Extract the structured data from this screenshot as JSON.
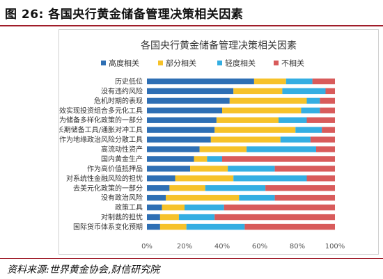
{
  "header": {
    "title": "图 26:  各国央行黄金储备管理决策相关因素"
  },
  "source": "资料来源:世界黄金协会,财信研究院",
  "chart_data": {
    "type": "bar",
    "orientation": "horizontal",
    "stacked": "percent",
    "title": "各国央行黄金储备管理决策相关因素",
    "legend_position": "top",
    "categories": [
      "历史低位",
      "没有违约风险",
      "危机时期的表现",
      "有效实现投资组合多元化工具",
      "作为储备多样化政策的一部分",
      "长期储备工具/通胀对冲工具",
      "作为地缘政治风险分散工具",
      "高流动性资产",
      "国内黄金生产",
      "作为高价值抵押品",
      "对系统性金融风险的担忧",
      "去美元化政策的一部分",
      "没有政治风险",
      "政策工具",
      "对制裁的担忧",
      "国际货币体系变化预期"
    ],
    "series": [
      {
        "name": "高度相关",
        "color": "#2e6fb4",
        "values": [
          57,
          46,
          44,
          40,
          37,
          36,
          34,
          28,
          25,
          23,
          15,
          12,
          10,
          8,
          7,
          7
        ]
      },
      {
        "name": "部分相关",
        "color": "#f6c22a",
        "values": [
          17,
          26,
          41,
          42,
          33,
          43,
          37,
          25,
          7,
          20,
          31,
          19,
          39,
          12,
          10,
          14
        ]
      },
      {
        "name": "轻度相关",
        "color": "#34aee2",
        "values": [
          14,
          23,
          7,
          10,
          15,
          14,
          16,
          37,
          8,
          25,
          39,
          32,
          19,
          21,
          19,
          31
        ]
      },
      {
        "name": "不相关",
        "color": "#d85b5b",
        "values": [
          12,
          5,
          8,
          8,
          15,
          7,
          13,
          10,
          60,
          32,
          15,
          37,
          32,
          59,
          64,
          48
        ]
      }
    ],
    "xlim": [
      0,
      100
    ],
    "x_ticks": [
      "0%",
      "20%",
      "40%",
      "60%",
      "80%",
      "100%"
    ],
    "grid": false
  }
}
